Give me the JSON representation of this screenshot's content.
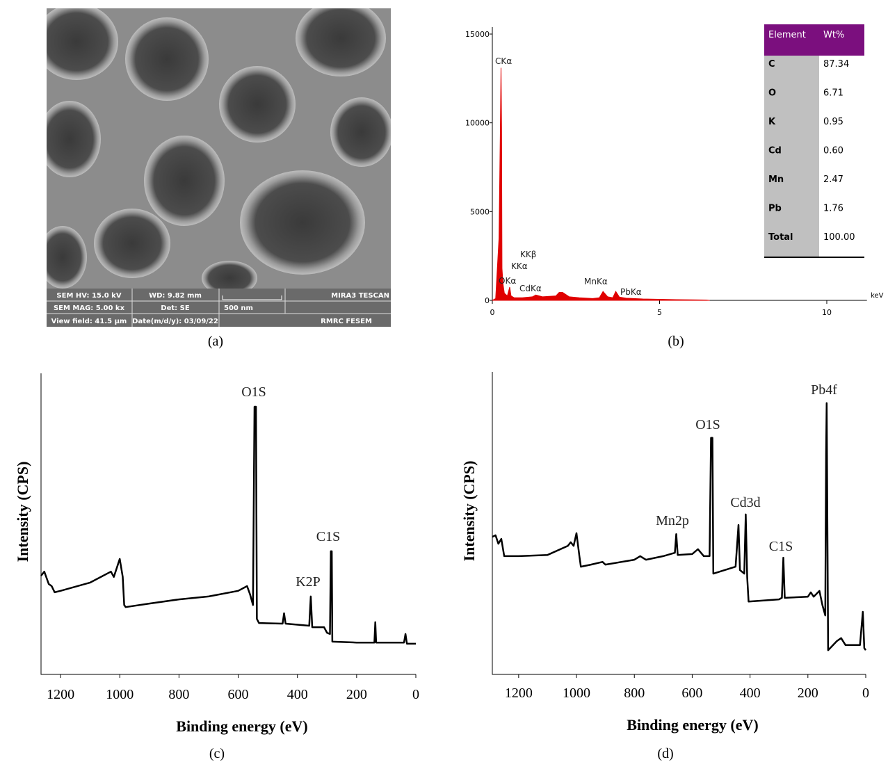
{
  "sem_image": {
    "caption": "(a)",
    "info": [
      "SEM HV: 15.0 kV",
      "WD: 9.82 mm",
      "MIRA3 TESCAN",
      "SEM MAG: 5.00 kx",
      "Det: SE",
      "500 nm",
      "View field: 41.5 μm",
      "Date(m/d/y): 03/09/22",
      "RMRC  FESEM"
    ]
  },
  "chart_data": [
    {
      "type": "area",
      "caption": "(b)",
      "xlabel": "keV",
      "color": "#e00000",
      "x": [
        0,
        0.1,
        0.2,
        0.24,
        0.26,
        0.277,
        0.29,
        0.32,
        0.36,
        0.45,
        0.52,
        0.56,
        0.65,
        0.9,
        1.2,
        1.3,
        1.5,
        1.9,
        2.0,
        2.1,
        2.3,
        2.6,
        3.0,
        3.2,
        3.31,
        3.45,
        3.6,
        3.69,
        3.8,
        4.0,
        4.5,
        5.0,
        5.5,
        6.0,
        6.4,
        6.5
      ],
      "values": [
        0,
        100,
        3500,
        9600,
        13100,
        9700,
        1800,
        900,
        400,
        250,
        750,
        250,
        150,
        150,
        200,
        300,
        200,
        250,
        450,
        450,
        200,
        150,
        100,
        150,
        500,
        200,
        150,
        500,
        180,
        120,
        80,
        60,
        40,
        30,
        20,
        0
      ],
      "xlim": [
        0,
        11.2
      ],
      "ylim": [
        0,
        15000
      ],
      "xticks": [
        0,
        5,
        10
      ],
      "yticks": [
        0,
        5000,
        10000,
        15000
      ],
      "annotations": [
        "CKα",
        "KKβ",
        "KKα",
        "OKα",
        "CdKα",
        "MnKα",
        "PbKα"
      ],
      "table": {
        "header": [
          "Element",
          "Wt%"
        ],
        "rows": [
          [
            "C",
            "87.34"
          ],
          [
            "O",
            "6.71"
          ],
          [
            "K",
            "0.95"
          ],
          [
            "Cd",
            "0.60"
          ],
          [
            "Mn",
            "2.47"
          ],
          [
            "Pb",
            "1.76"
          ],
          [
            "Total",
            "100.00"
          ]
        ]
      }
    },
    {
      "type": "line",
      "caption": "(c)",
      "xlabel": "Binding energy (eV)",
      "ylabel": "Intensity (CPS)",
      "color": "#000000",
      "x": [
        1266,
        1255,
        1240,
        1230,
        1220,
        1200,
        1100,
        1030,
        1020,
        1000,
        990,
        985,
        980,
        900,
        800,
        700,
        600,
        570,
        560,
        550,
        545,
        540,
        537,
        530,
        450,
        445,
        440,
        360,
        355,
        350,
        310,
        300,
        290,
        287,
        284,
        282,
        200,
        140,
        137,
        134,
        40,
        35,
        30,
        0
      ],
      "values": [
        31.5,
        32.9,
        28.7,
        28.0,
        25.9,
        26.4,
        29.2,
        32.9,
        31.1,
        37.2,
        31.1,
        21.6,
        20.9,
        22.1,
        23.5,
        24.5,
        26.4,
        28.0,
        25.2,
        21.6,
        88.7,
        88.7,
        16.9,
        15.5,
        15.3,
        18.8,
        15.3,
        14.6,
        24.5,
        14.1,
        14.1,
        12.2,
        11.8,
        39.8,
        39.8,
        9.2,
        8.9,
        8.9,
        15.8,
        8.9,
        8.9,
        11.8,
        8.5,
        8.5
      ],
      "xlim": [
        1266,
        0
      ],
      "ylim": [
        0,
        100
      ],
      "xticks": [
        1200,
        1000,
        800,
        600,
        400,
        200,
        0
      ],
      "annotations": [
        "O1S",
        "C1S",
        "K2P"
      ]
    },
    {
      "type": "line",
      "caption": "(d)",
      "xlabel": "Binding energy (eV)",
      "ylabel": "Intensity (CPS)",
      "color": "#000000",
      "x": [
        1291,
        1280,
        1270,
        1260,
        1250,
        1200,
        1100,
        1030,
        1020,
        1010,
        1000,
        990,
        985,
        950,
        910,
        900,
        800,
        780,
        760,
        700,
        660,
        655,
        650,
        600,
        580,
        560,
        540,
        535,
        530,
        527,
        450,
        440,
        435,
        420,
        415,
        410,
        405,
        300,
        290,
        285,
        280,
        200,
        190,
        180,
        160,
        150,
        140,
        137,
        135,
        130,
        100,
        85,
        70,
        20,
        10,
        5,
        0
      ],
      "values": [
        45.5,
        46.0,
        43.2,
        44.8,
        39.1,
        39.1,
        39.5,
        42.5,
        43.7,
        42.5,
        46.7,
        39.1,
        35.6,
        36.3,
        37.2,
        36.3,
        37.9,
        39.1,
        37.9,
        39.1,
        40.2,
        46.4,
        39.5,
        39.8,
        41.4,
        39.1,
        39.1,
        78.2,
        78.2,
        33.3,
        35.6,
        49.4,
        34.5,
        33.3,
        52.9,
        32.2,
        24.1,
        24.8,
        25.3,
        38.6,
        25.3,
        25.7,
        27.1,
        25.7,
        27.6,
        23.0,
        19.5,
        73.1,
        89.7,
        8.0,
        11.0,
        12.0,
        9.7,
        9.7,
        20.7,
        8.7,
        8.0
      ],
      "xlim": [
        1291,
        0
      ],
      "ylim": [
        0,
        100
      ],
      "xticks": [
        1200,
        1000,
        800,
        600,
        400,
        200,
        0
      ],
      "annotations": [
        "Pb4f",
        "O1S",
        "Cd3d",
        "Mn2p",
        "C1S"
      ]
    }
  ]
}
